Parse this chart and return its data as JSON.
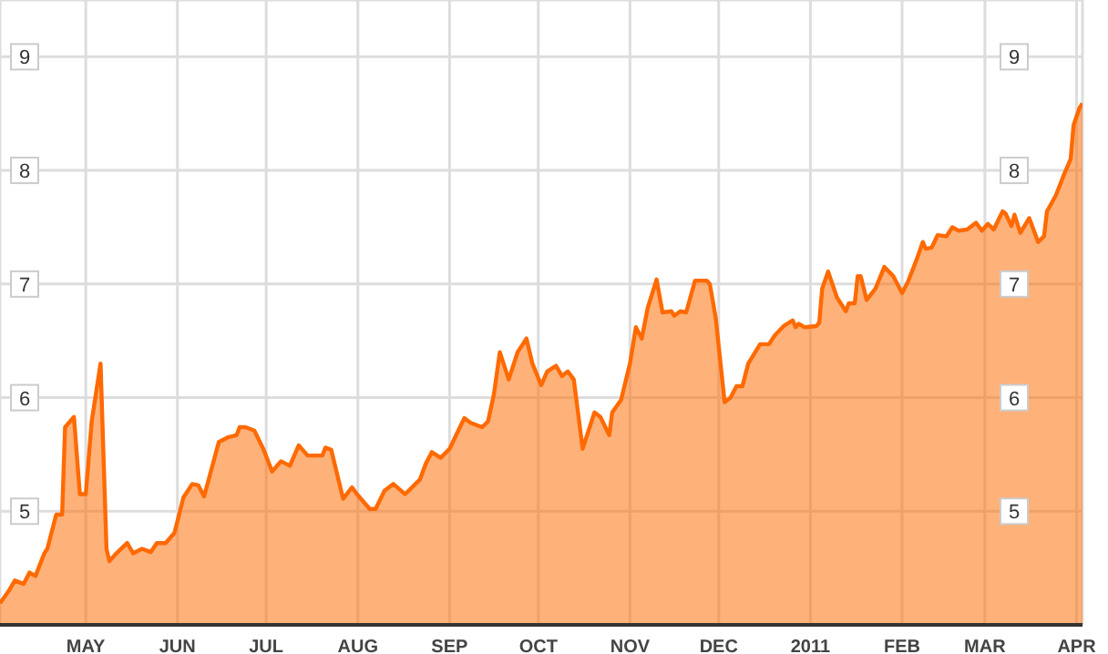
{
  "chart_data": {
    "type": "area",
    "x": [
      "2010-04-02",
      "2010-04-05",
      "2010-04-07",
      "2010-04-10",
      "2010-04-12",
      "2010-04-14",
      "2010-04-17",
      "2010-04-18",
      "2010-04-21",
      "2010-04-23",
      "2010-04-24",
      "2010-04-27",
      "2010-04-29",
      "2010-05-01",
      "2010-05-03",
      "2010-05-06",
      "2010-05-08",
      "2010-05-09",
      "2010-05-11",
      "2010-05-15",
      "2010-05-17",
      "2010-05-20",
      "2010-05-23",
      "2010-05-25",
      "2010-05-28",
      "2010-05-31",
      "2010-06-03",
      "2010-06-06",
      "2010-06-08",
      "2010-06-10",
      "2010-06-15",
      "2010-06-18",
      "2010-06-21",
      "2010-06-22",
      "2010-06-24",
      "2010-06-27",
      "2010-06-30",
      "2010-07-03",
      "2010-07-06",
      "2010-07-09",
      "2010-07-12",
      "2010-07-15",
      "2010-07-20",
      "2010-07-21",
      "2010-07-23",
      "2010-07-27",
      "2010-07-30",
      "2010-08-01",
      "2010-08-05",
      "2010-08-07",
      "2010-08-10",
      "2010-08-13",
      "2010-08-17",
      "2010-08-22",
      "2010-08-24",
      "2010-08-26",
      "2010-08-29",
      "2010-09-01",
      "2010-09-06",
      "2010-09-08",
      "2010-09-12",
      "2010-09-14",
      "2010-09-16",
      "2010-09-18",
      "2010-09-21",
      "2010-09-24",
      "2010-09-27",
      "2010-09-29",
      "2010-10-02",
      "2010-10-04",
      "2010-10-07",
      "2010-10-09",
      "2010-10-11",
      "2010-10-13",
      "2010-10-16",
      "2010-10-20",
      "2010-10-22",
      "2010-10-25",
      "2010-10-26",
      "2010-10-29",
      "2010-11-01",
      "2010-11-03",
      "2010-11-05",
      "2010-11-07",
      "2010-11-10",
      "2010-11-12",
      "2010-11-15",
      "2010-11-16",
      "2010-11-18",
      "2010-11-20",
      "2010-11-23",
      "2010-11-27",
      "2010-11-28",
      "2010-11-30",
      "2010-12-03",
      "2010-12-05",
      "2010-12-07",
      "2010-12-09",
      "2010-12-11",
      "2010-12-15",
      "2010-12-18",
      "2010-12-20",
      "2010-12-23",
      "2010-12-26",
      "2010-12-27",
      "2010-12-28",
      "2010-12-30",
      "2011-01-03",
      "2011-01-04",
      "2011-01-05",
      "2011-01-07",
      "2011-01-10",
      "2011-01-13",
      "2011-01-14",
      "2011-01-16",
      "2011-01-17",
      "2011-01-18",
      "2011-01-20",
      "2011-01-23",
      "2011-01-26",
      "2011-01-29",
      "2011-02-01",
      "2011-02-03",
      "2011-02-06",
      "2011-02-08",
      "2011-02-09",
      "2011-02-11",
      "2011-02-13",
      "2011-02-16",
      "2011-02-18",
      "2011-02-20",
      "2011-02-23",
      "2011-02-26",
      "2011-02-28",
      "2011-03-02",
      "2011-03-04",
      "2011-03-07",
      "2011-03-08",
      "2011-03-10",
      "2011-03-11",
      "2011-03-13",
      "2011-03-16",
      "2011-03-19",
      "2011-03-21",
      "2011-03-22",
      "2011-03-25",
      "2011-03-28",
      "2011-03-30",
      "2011-03-31",
      "2011-04-02",
      "2011-04-03"
    ],
    "series": [
      {
        "color": "#ff6a00",
        "values": [
          4.19,
          4.3,
          4.39,
          4.36,
          4.46,
          4.43,
          4.63,
          4.67,
          4.97,
          4.97,
          5.74,
          5.83,
          5.15,
          5.15,
          5.79,
          6.3,
          4.67,
          4.56,
          4.62,
          4.72,
          4.63,
          4.67,
          4.64,
          4.72,
          4.72,
          4.81,
          5.12,
          5.24,
          5.23,
          5.13,
          5.61,
          5.65,
          5.67,
          5.74,
          5.74,
          5.71,
          5.55,
          5.35,
          5.44,
          5.4,
          5.58,
          5.49,
          5.49,
          5.56,
          5.54,
          5.11,
          5.21,
          5.14,
          5.02,
          5.02,
          5.18,
          5.24,
          5.15,
          5.28,
          5.42,
          5.52,
          5.47,
          5.55,
          5.82,
          5.78,
          5.74,
          5.79,
          6.03,
          6.4,
          6.16,
          6.4,
          6.52,
          6.3,
          6.11,
          6.23,
          6.28,
          6.19,
          6.23,
          6.16,
          5.55,
          5.87,
          5.83,
          5.67,
          5.87,
          5.98,
          6.3,
          6.62,
          6.52,
          6.79,
          7.04,
          6.75,
          6.76,
          6.72,
          6.76,
          6.75,
          7.03,
          7.03,
          7.0,
          6.7,
          5.96,
          6.0,
          6.1,
          6.1,
          6.3,
          6.47,
          6.47,
          6.55,
          6.63,
          6.68,
          6.62,
          6.65,
          6.62,
          6.63,
          6.66,
          6.96,
          7.11,
          6.88,
          6.76,
          6.83,
          6.83,
          7.07,
          7.07,
          6.86,
          6.96,
          7.15,
          7.07,
          6.92,
          7.02,
          7.22,
          7.37,
          7.31,
          7.32,
          7.43,
          7.42,
          7.5,
          7.47,
          7.48,
          7.54,
          7.47,
          7.53,
          7.48,
          7.64,
          7.62,
          7.51,
          7.61,
          7.45,
          7.58,
          7.37,
          7.42,
          7.64,
          7.78,
          7.98,
          8.1,
          8.4,
          8.55,
          8.59
        ]
      }
    ],
    "xlim": [
      "2010-04-02",
      "2011-04-03"
    ],
    "xticks": [
      {
        "value": "2010-05-01",
        "label": "MAY"
      },
      {
        "value": "2010-06-01",
        "label": "JUN"
      },
      {
        "value": "2010-07-01",
        "label": "JUL"
      },
      {
        "value": "2010-08-01",
        "label": "AUG"
      },
      {
        "value": "2010-09-01",
        "label": "SEP"
      },
      {
        "value": "2010-10-01",
        "label": "OCT"
      },
      {
        "value": "2010-11-01",
        "label": "NOV"
      },
      {
        "value": "2010-12-01",
        "label": "DEC"
      },
      {
        "value": "2011-01-01",
        "label": "2011"
      },
      {
        "value": "2011-02-01",
        "label": "FEB"
      },
      {
        "value": "2011-03-01",
        "label": "MAR"
      },
      {
        "value": "2011-04-01",
        "label": "APR"
      }
    ],
    "ylim": [
      4,
      9.5
    ],
    "yticks": [
      5,
      6,
      7,
      8,
      9
    ],
    "y2lim": [
      4,
      9.5
    ],
    "y2ticks": [
      5,
      6,
      7,
      8,
      9
    ],
    "grid": true
  }
}
